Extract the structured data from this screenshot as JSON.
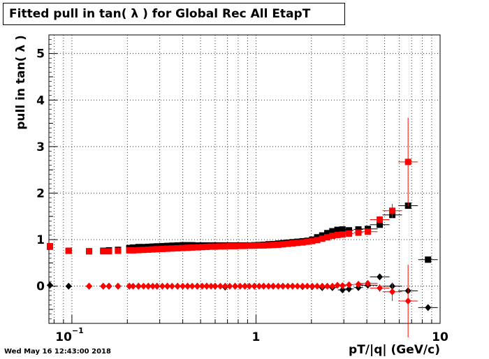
{
  "timestamp": "Wed May 16 12:43:00 2018",
  "chart_data": {
    "type": "scatter",
    "title": "Fitted pull in tan( λ ) for Global Rec All EtapT",
    "xlabel": "pT/|q| (GeV/c)",
    "ylabel": "pull in tan( λ )",
    "x_scale": "log",
    "xlim": [
      0.075,
      10
    ],
    "ylim": [
      -0.8,
      5.4
    ],
    "grid": true,
    "x_ticks": [
      {
        "value": 0.1,
        "label": "10",
        "sup": "−1"
      },
      {
        "value": 1,
        "label": "1"
      },
      {
        "value": 10,
        "label": "10"
      }
    ],
    "y_ticks": [
      0,
      1,
      2,
      3,
      4,
      5
    ],
    "colors": {
      "black": "#000000",
      "red": "#ff0000"
    },
    "series": [
      {
        "color": "#000000",
        "marker": "square",
        "points": [
          [
            0.076,
            0.85
          ],
          [
            0.096,
            0.76
          ],
          [
            0.124,
            0.75
          ],
          [
            0.148,
            0.76
          ],
          [
            0.159,
            0.77
          ],
          [
            0.178,
            0.78
          ],
          [
            0.205,
            0.82
          ],
          [
            0.215,
            0.83
          ],
          [
            0.23,
            0.84
          ],
          [
            0.245,
            0.84
          ],
          [
            0.26,
            0.845
          ],
          [
            0.275,
            0.85
          ],
          [
            0.29,
            0.855
          ],
          [
            0.31,
            0.86
          ],
          [
            0.33,
            0.865
          ],
          [
            0.35,
            0.87
          ],
          [
            0.375,
            0.875
          ],
          [
            0.4,
            0.88
          ],
          [
            0.425,
            0.88
          ],
          [
            0.45,
            0.88
          ],
          [
            0.48,
            0.875
          ],
          [
            0.51,
            0.875
          ],
          [
            0.54,
            0.875
          ],
          [
            0.57,
            0.875
          ],
          [
            0.6,
            0.875
          ],
          [
            0.64,
            0.875
          ],
          [
            0.68,
            0.875
          ],
          [
            0.72,
            0.875
          ],
          [
            0.77,
            0.875
          ],
          [
            0.82,
            0.875
          ],
          [
            0.87,
            0.875
          ],
          [
            0.92,
            0.875
          ],
          [
            0.98,
            0.88
          ],
          [
            1.04,
            0.885
          ],
          [
            1.1,
            0.89
          ],
          [
            1.17,
            0.9
          ],
          [
            1.24,
            0.905
          ],
          [
            1.32,
            0.915
          ],
          [
            1.4,
            0.925
          ],
          [
            1.49,
            0.935
          ],
          [
            1.58,
            0.945
          ],
          [
            1.68,
            0.955
          ],
          [
            1.79,
            0.965
          ],
          [
            1.9,
            0.975
          ],
          [
            2.02,
            1.0
          ],
          [
            2.15,
            1.05
          ],
          [
            2.29,
            1.09
          ],
          [
            2.44,
            1.14
          ],
          [
            2.6,
            1.18
          ],
          [
            2.77,
            1.21
          ],
          [
            2.95,
            1.22
          ],
          [
            3.2,
            1.2
          ],
          [
            3.6,
            1.22
          ],
          [
            4.05,
            1.23
          ],
          [
            4.7,
            1.32
          ],
          [
            5.5,
            1.53
          ],
          [
            6.7,
            1.73
          ],
          [
            8.6,
            0.57
          ]
        ]
      },
      {
        "color": "#ff0000",
        "marker": "square",
        "points": [
          [
            0.076,
            0.86
          ],
          [
            0.096,
            0.76
          ],
          [
            0.124,
            0.75
          ],
          [
            0.148,
            0.75
          ],
          [
            0.159,
            0.75
          ],
          [
            0.178,
            0.76
          ],
          [
            0.205,
            0.77
          ],
          [
            0.215,
            0.77
          ],
          [
            0.23,
            0.775
          ],
          [
            0.245,
            0.78
          ],
          [
            0.26,
            0.785
          ],
          [
            0.275,
            0.79
          ],
          [
            0.29,
            0.795
          ],
          [
            0.31,
            0.8
          ],
          [
            0.33,
            0.805
          ],
          [
            0.35,
            0.81
          ],
          [
            0.375,
            0.815
          ],
          [
            0.4,
            0.82
          ],
          [
            0.425,
            0.825
          ],
          [
            0.45,
            0.83
          ],
          [
            0.48,
            0.835
          ],
          [
            0.51,
            0.84
          ],
          [
            0.54,
            0.845
          ],
          [
            0.57,
            0.85
          ],
          [
            0.6,
            0.85
          ],
          [
            0.64,
            0.855
          ],
          [
            0.68,
            0.855
          ],
          [
            0.72,
            0.86
          ],
          [
            0.77,
            0.86
          ],
          [
            0.82,
            0.865
          ],
          [
            0.87,
            0.865
          ],
          [
            0.92,
            0.87
          ],
          [
            0.98,
            0.87
          ],
          [
            1.04,
            0.875
          ],
          [
            1.1,
            0.875
          ],
          [
            1.17,
            0.88
          ],
          [
            1.24,
            0.885
          ],
          [
            1.32,
            0.89
          ],
          [
            1.4,
            0.9
          ],
          [
            1.49,
            0.91
          ],
          [
            1.58,
            0.92
          ],
          [
            1.68,
            0.93
          ],
          [
            1.79,
            0.94
          ],
          [
            1.9,
            0.955
          ],
          [
            2.02,
            0.97
          ],
          [
            2.15,
            0.99
          ],
          [
            2.29,
            1.02
          ],
          [
            2.44,
            1.05
          ],
          [
            2.6,
            1.08
          ],
          [
            2.77,
            1.1
          ],
          [
            2.95,
            1.11
          ],
          [
            3.2,
            1.13
          ],
          [
            3.6,
            1.15
          ],
          [
            4.05,
            1.17
          ],
          [
            4.7,
            1.43
          ],
          [
            5.5,
            1.62
          ],
          [
            6.7,
            2.67
          ]
        ],
        "yerr": [
          [
            4.7,
            0.07
          ],
          [
            5.5,
            0.15
          ],
          [
            6.7,
            0.95
          ]
        ]
      },
      {
        "color": "#000000",
        "marker": "diamond",
        "points": [
          [
            0.076,
            0.02
          ],
          [
            0.096,
            0.0
          ],
          [
            0.124,
            0.0
          ],
          [
            0.148,
            0.0
          ],
          [
            0.159,
            0.0
          ],
          [
            0.178,
            0.0
          ],
          [
            0.205,
            0.0
          ],
          [
            0.23,
            0.0
          ],
          [
            0.26,
            0.0
          ],
          [
            0.29,
            0.0
          ],
          [
            0.33,
            0.0
          ],
          [
            0.375,
            0.0
          ],
          [
            0.425,
            0.0
          ],
          [
            0.48,
            0.0
          ],
          [
            0.54,
            0.0
          ],
          [
            0.6,
            0.0
          ],
          [
            0.68,
            -0.02
          ],
          [
            0.77,
            0.0
          ],
          [
            0.87,
            0.0
          ],
          [
            0.98,
            0.0
          ],
          [
            1.1,
            0.0
          ],
          [
            1.24,
            0.0
          ],
          [
            1.4,
            0.0
          ],
          [
            1.58,
            0.0
          ],
          [
            1.79,
            -0.01
          ],
          [
            2.02,
            -0.01
          ],
          [
            2.29,
            -0.03
          ],
          [
            2.6,
            -0.03
          ],
          [
            2.95,
            -0.08
          ],
          [
            3.2,
            -0.06
          ],
          [
            3.6,
            -0.03
          ],
          [
            4.05,
            0.02
          ],
          [
            4.7,
            0.2
          ],
          [
            5.5,
            0.0
          ],
          [
            6.7,
            -0.1
          ],
          [
            8.6,
            -0.46
          ]
        ]
      },
      {
        "color": "#ff0000",
        "marker": "diamond",
        "points": [
          [
            0.124,
            0.0
          ],
          [
            0.148,
            0.0
          ],
          [
            0.159,
            0.0
          ],
          [
            0.178,
            0.0
          ],
          [
            0.205,
            0.0
          ],
          [
            0.215,
            0.0
          ],
          [
            0.23,
            0.0
          ],
          [
            0.245,
            0.0
          ],
          [
            0.26,
            0.0
          ],
          [
            0.275,
            0.0
          ],
          [
            0.29,
            0.0
          ],
          [
            0.31,
            0.0
          ],
          [
            0.33,
            0.0
          ],
          [
            0.35,
            0.0
          ],
          [
            0.375,
            0.0
          ],
          [
            0.4,
            0.0
          ],
          [
            0.425,
            0.0
          ],
          [
            0.45,
            0.0
          ],
          [
            0.48,
            0.0
          ],
          [
            0.51,
            0.0
          ],
          [
            0.54,
            0.0
          ],
          [
            0.57,
            0.0
          ],
          [
            0.6,
            0.0
          ],
          [
            0.64,
            0.0
          ],
          [
            0.68,
            0.0
          ],
          [
            0.72,
            0.0
          ],
          [
            0.77,
            0.0
          ],
          [
            0.82,
            0.0
          ],
          [
            0.87,
            0.0
          ],
          [
            0.92,
            0.0
          ],
          [
            0.98,
            0.0
          ],
          [
            1.04,
            0.0
          ],
          [
            1.1,
            0.0
          ],
          [
            1.17,
            0.0
          ],
          [
            1.24,
            0.0
          ],
          [
            1.32,
            0.0
          ],
          [
            1.4,
            0.0
          ],
          [
            1.49,
            0.0
          ],
          [
            1.58,
            0.0
          ],
          [
            1.68,
            0.0
          ],
          [
            1.79,
            0.0
          ],
          [
            1.9,
            0.0
          ],
          [
            2.02,
            0.0
          ],
          [
            2.15,
            0.0
          ],
          [
            2.29,
            0.0
          ],
          [
            2.44,
            0.0
          ],
          [
            2.6,
            0.0
          ],
          [
            2.77,
            0.02
          ],
          [
            2.95,
            0.01
          ],
          [
            3.2,
            0.03
          ],
          [
            3.6,
            0.04
          ],
          [
            4.05,
            0.06
          ],
          [
            4.7,
            -0.04
          ],
          [
            5.5,
            -0.12
          ],
          [
            6.7,
            -0.32
          ]
        ],
        "yerr": [
          [
            4.7,
            0.08
          ],
          [
            5.5,
            0.2
          ],
          [
            6.7,
            0.78
          ]
        ]
      }
    ]
  }
}
